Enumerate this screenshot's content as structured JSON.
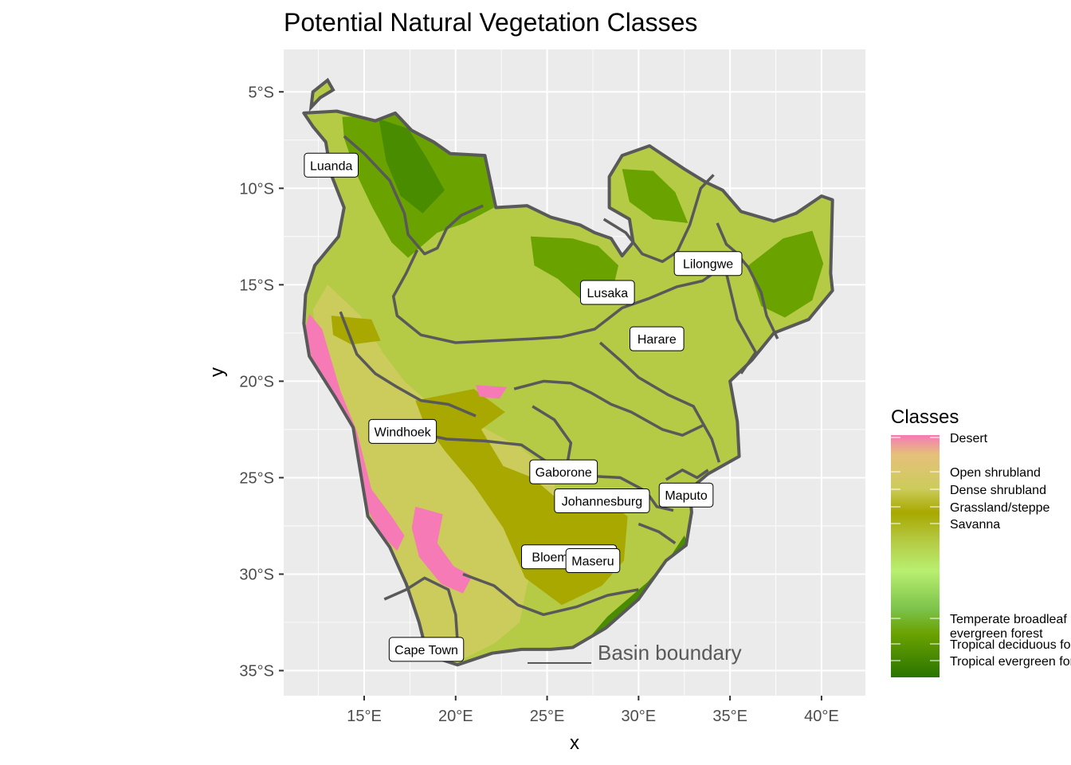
{
  "title": "Potential Natural Vegetation Classes",
  "axes": {
    "x_title": "x",
    "y_title": "y",
    "x_ticks": [
      {
        "value": 15,
        "label": "15°E"
      },
      {
        "value": 20,
        "label": "20°E"
      },
      {
        "value": 25,
        "label": "25°E"
      },
      {
        "value": 30,
        "label": "30°E"
      },
      {
        "value": 35,
        "label": "35°E"
      },
      {
        "value": 40,
        "label": "40°E"
      }
    ],
    "y_ticks": [
      {
        "value": -5,
        "label": "5°S"
      },
      {
        "value": -10,
        "label": "10°S"
      },
      {
        "value": -15,
        "label": "15°S"
      },
      {
        "value": -20,
        "label": "20°S"
      },
      {
        "value": -25,
        "label": "25°S"
      },
      {
        "value": -30,
        "label": "30°S"
      },
      {
        "value": -35,
        "label": "35°S"
      }
    ],
    "xlim": [
      10.6,
      42.4
    ],
    "ylim": [
      -36.3,
      -2.8
    ]
  },
  "colors": {
    "panel_bg": "#ebebeb",
    "grid": "#ffffff",
    "boundary": "#595959",
    "savanna": "#b5cb45",
    "grassland": "#a8a800",
    "shrubland": "#cccc5c",
    "desert": "#f57ab6",
    "forest": "#6aa200",
    "forest_dark": "#4a8c00"
  },
  "cities": [
    {
      "name": "Luanda",
      "lon": 13.2,
      "lat": -8.8
    },
    {
      "name": "Lilongwe",
      "lon": 33.8,
      "lat": -13.9
    },
    {
      "name": "Lusaka",
      "lon": 28.3,
      "lat": -15.4
    },
    {
      "name": "Harare",
      "lon": 31.0,
      "lat": -17.8
    },
    {
      "name": "Windhoek",
      "lon": 17.1,
      "lat": -22.6
    },
    {
      "name": "Gaborone",
      "lon": 25.9,
      "lat": -24.7
    },
    {
      "name": "Johannesburg",
      "lon": 28.0,
      "lat": -26.2
    },
    {
      "name": "Maputo",
      "lon": 32.6,
      "lat": -25.9
    },
    {
      "name": "Bloemfontein",
      "lon": 26.2,
      "lat": -29.1
    },
    {
      "name": "Maseru",
      "lon": 27.5,
      "lat": -29.3
    },
    {
      "name": "Cape Town",
      "lon": 18.4,
      "lat": -33.9
    }
  ],
  "legend": {
    "title": "Classes",
    "entries": [
      {
        "label": "Desert"
      },
      {
        "label": "Open shrubland"
      },
      {
        "label": "Dense shrubland"
      },
      {
        "label": "Grassland/steppe"
      },
      {
        "label": "Savanna"
      },
      {
        "label": "Temperate broadleaf evergreen forest"
      },
      {
        "label": "Tropical deciduous forest"
      },
      {
        "label": "Tropical evergreen forest"
      }
    ]
  },
  "basin_label": "Basin boundary"
}
